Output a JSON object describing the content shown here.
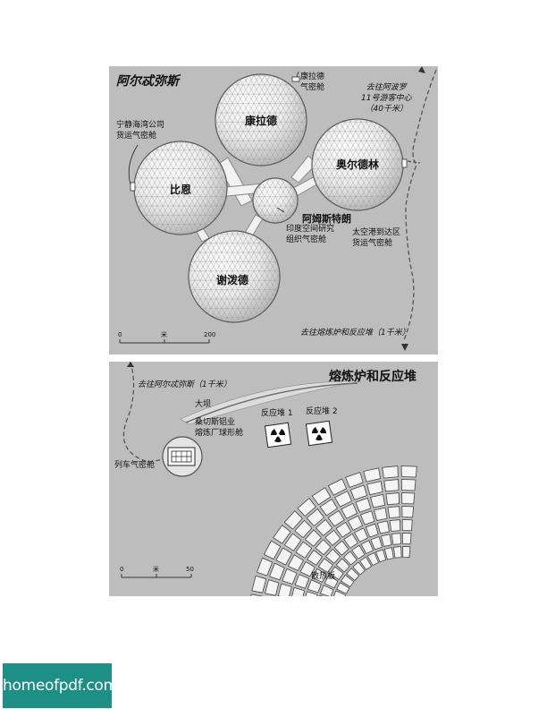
{
  "top_map": {
    "title": "阿尔忒弥斯",
    "spheres": {
      "kangrade": "康拉德",
      "bean": "比恩",
      "aldrin": "奥尔德林",
      "armstrong": "阿姆斯特朗",
      "shepard": "谢泼德"
    },
    "labels": {
      "kangrade_airlock": "康拉德\n气密舱",
      "ningjing_airlock": "宁静海湾公司\n货运气密舱",
      "india_airlock": "印度空间研究\n组织气密舱",
      "spaceport_airlock": "太空港到达区\n货运气密舱",
      "to_apollo": "去往阿波罗\n11号游客中心\n（40千米）",
      "to_smelter": "去往熔炼炉和反应堆（1千米）"
    },
    "scale": {
      "start": "0",
      "unit": "米",
      "end": "200"
    }
  },
  "bottom_map": {
    "title": "熔炼炉和反应堆",
    "labels": {
      "to_artemis": "去往阿尔忒弥斯（1千米）",
      "dam": "大坝",
      "sanchez": "桑切斯铝业\n熔炼厂球形舱",
      "train_airlock": "列车气密舱",
      "reactor1": "反应堆 1",
      "reactor2": "反应堆 2",
      "radiator": "散热板"
    },
    "scale": {
      "start": "0",
      "unit": "米",
      "end": "50"
    }
  },
  "watermark": "homeofpdf.com"
}
